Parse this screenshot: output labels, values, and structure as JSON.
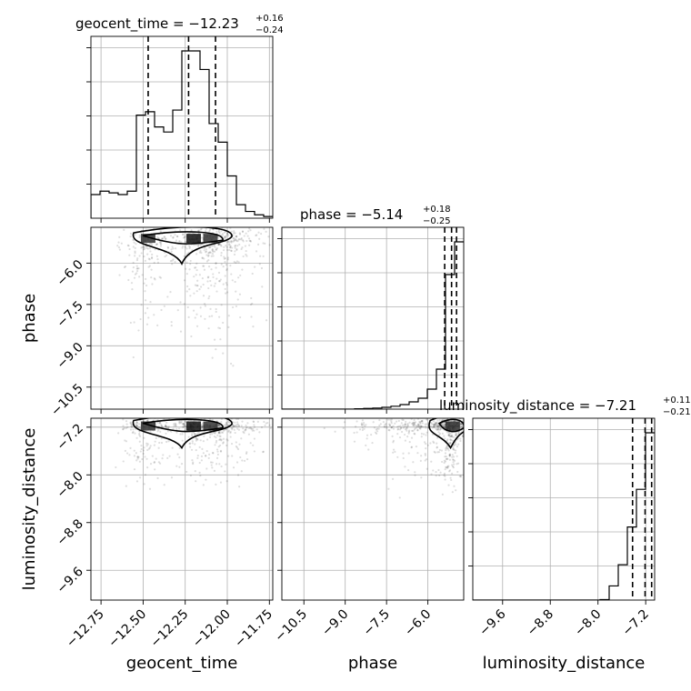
{
  "chart_data": {
    "type": "corner",
    "parameters": [
      "geocent_time",
      "phase",
      "luminosity_distance"
    ],
    "xlabels": [
      "geocent_time",
      "phase",
      "luminosity_distance"
    ],
    "ylabels": [
      "phase",
      "luminosity_distance"
    ],
    "titles": [
      {
        "name": "geocent_time",
        "median": "−12.23",
        "plus": "+0.16",
        "minus": "−0.24",
        "prefix": "geocent_time = −12.23"
      },
      {
        "name": "phase",
        "median": "−5.14",
        "plus": "+0.18",
        "minus": "−0.25",
        "prefix": "phase = −5.14"
      },
      {
        "name": "luminosity_distance",
        "median": "−7.21",
        "plus": "+0.11",
        "minus": "−0.21",
        "prefix": "luminosity_distance = −7.21"
      }
    ],
    "ranges": {
      "geocent_time": [
        -12.81,
        -11.73
      ],
      "phase": [
        -11.3,
        -4.7
      ],
      "luminosity_distance": [
        -10.1,
        -7.05
      ]
    },
    "ticks": {
      "geocent_time": [
        "−12.75",
        "−12.50",
        "−12.25",
        "−12.00",
        "−11.75"
      ],
      "geocent_time_values": [
        -12.75,
        -12.5,
        -12.25,
        -12.0,
        -11.75
      ],
      "phase": [
        "−10.5",
        "−9.0",
        "−7.5",
        "−6.0"
      ],
      "phase_values": [
        -10.5,
        -9.0,
        -7.5,
        -6.0
      ],
      "luminosity_distance": [
        "−9.6",
        "−8.8",
        "−8.0",
        "−7.2"
      ],
      "luminosity_distance_values": [
        -9.6,
        -8.8,
        -8.0,
        -7.2
      ]
    },
    "quantiles": {
      "geocent_time": [
        -12.47,
        -12.23,
        -12.07
      ],
      "phase": [
        -5.39,
        -5.14,
        -4.96
      ],
      "luminosity_distance": [
        -7.42,
        -7.21,
        -7.1
      ]
    },
    "hist_geocent_time": {
      "edges": [
        -12.81,
        -12.756,
        -12.702,
        -12.648,
        -12.594,
        -12.54,
        -12.486,
        -12.432,
        -12.378,
        -12.324,
        -12.27,
        -12.216,
        -12.162,
        -12.108,
        -12.054,
        -12.0,
        -11.946,
        -11.892,
        -11.838,
        -11.784,
        -11.73
      ],
      "counts": [
        0.14,
        0.16,
        0.15,
        0.14,
        0.16,
        0.61,
        0.63,
        0.54,
        0.51,
        0.64,
        0.99,
        0.99,
        0.88,
        0.56,
        0.45,
        0.25,
        0.08,
        0.04,
        0.02,
        0.01
      ]
    },
    "hist_phase": {
      "edges": [
        -11.3,
        -10.97,
        -10.64,
        -10.31,
        -9.98,
        -9.65,
        -9.32,
        -8.99,
        -8.66,
        -8.33,
        -8.0,
        -7.67,
        -7.34,
        -7.01,
        -6.68,
        -6.35,
        -6.02,
        -5.69,
        -5.36,
        -5.03,
        -4.7
      ],
      "counts": [
        0.0,
        0.0,
        0.0,
        0.0,
        0.0,
        0.0,
        0.0,
        0.0,
        0.002,
        0.004,
        0.006,
        0.01,
        0.016,
        0.025,
        0.04,
        0.06,
        0.11,
        0.22,
        0.74,
        0.92
      ]
    },
    "hist_luminosity_distance": {
      "edges": [
        -10.1,
        -9.9475,
        -9.795,
        -9.6425,
        -9.49,
        -9.3375,
        -9.185,
        -9.0325,
        -8.88,
        -8.7275,
        -8.575,
        -8.4225,
        -8.27,
        -8.1175,
        -7.965,
        -7.8125,
        -7.66,
        -7.5075,
        -7.355,
        -7.2025,
        -7.05
      ],
      "counts": [
        0,
        0,
        0,
        0,
        0,
        0,
        0,
        0,
        0,
        0,
        0,
        0,
        0,
        0,
        0.002,
        0.06,
        0.15,
        0.31,
        0.47,
        0.71
      ]
    }
  }
}
